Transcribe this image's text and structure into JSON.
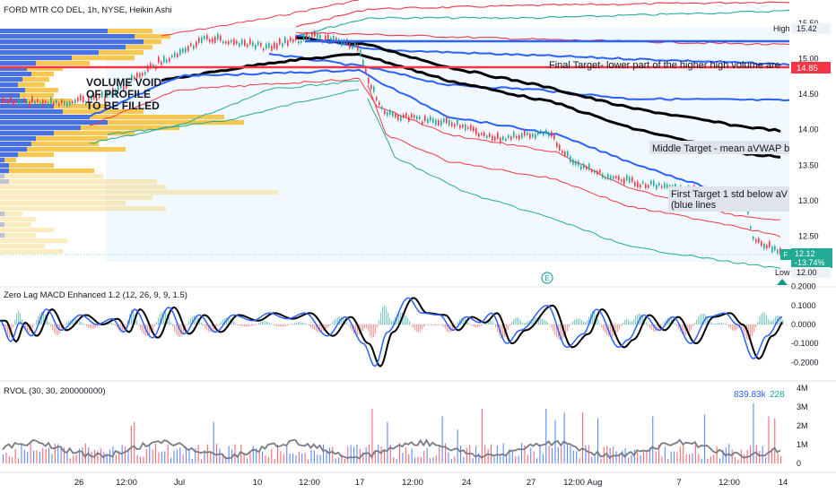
{
  "symbol_title": "FORD MTR CO DEL, 1h, NYSE, Heikin Ashi",
  "price_axis": {
    "labels": [
      "15.50",
      "15.00",
      "14.50",
      "14.00",
      "13.50",
      "13.00",
      "12.50",
      "12.00"
    ],
    "values": [
      15.5,
      15.0,
      14.5,
      14.0,
      13.5,
      13.0,
      12.5,
      12.0
    ]
  },
  "badges": {
    "high_label": "High",
    "high_value": "15.42",
    "target_value": "14.85",
    "last_icon": "F",
    "last_value": "12.12",
    "last_change": "-13.74%",
    "low_label": "Low",
    "low_value": "12.00"
  },
  "annotations": {
    "volume_void": [
      "VOLUME VOID",
      "OF PROFILE",
      "TO BE FILLED"
    ],
    "final_target": "Final Target- lower part of the higher high volume are",
    "middle_target": "Middle Target - mean aVWAP bla",
    "first_target": [
      "First Target 1 std below aV",
      "(blue lines"
    ],
    "earnings_marker": "E"
  },
  "macd": {
    "title": "Zero Lag MACD Enhanced 1.2 (12, 26, 9, 9, 1.5)",
    "axis_labels": [
      "0.2000",
      "0.1000",
      "0.0000",
      "-0.1000",
      "-0.2000"
    ],
    "axis_values": [
      0.2,
      0.1,
      0.0,
      -0.1,
      -0.2
    ]
  },
  "rvol": {
    "title": "RVOL (30, 30, 200000000)",
    "value_1": "839.83k",
    "value_2": "228",
    "axis_labels": [
      "4M",
      "3M",
      "2M",
      "1M",
      "0"
    ],
    "axis_values": [
      4,
      3,
      2,
      1,
      0
    ]
  },
  "time_axis": [
    "26",
    "12:00",
    "Jul",
    "10",
    "12:00",
    "17",
    "12:00",
    "24",
    "27",
    "12:00",
    "Aug",
    "7",
    "12:00",
    "14"
  ],
  "colors": {
    "blue_band": "#2962ff",
    "black_avwap": "#000000",
    "red_band": "#f23645",
    "teal_band": "#22ab94",
    "profile_blue": "#2962ff",
    "profile_yellow": "#f7c548",
    "target_line": "#f23645",
    "macd_line": "#2962ff",
    "signal_line": "#000000",
    "rvol_up": "#2962ff",
    "rvol_down": "#f23645",
    "rvol_avg": "#787b86"
  }
}
